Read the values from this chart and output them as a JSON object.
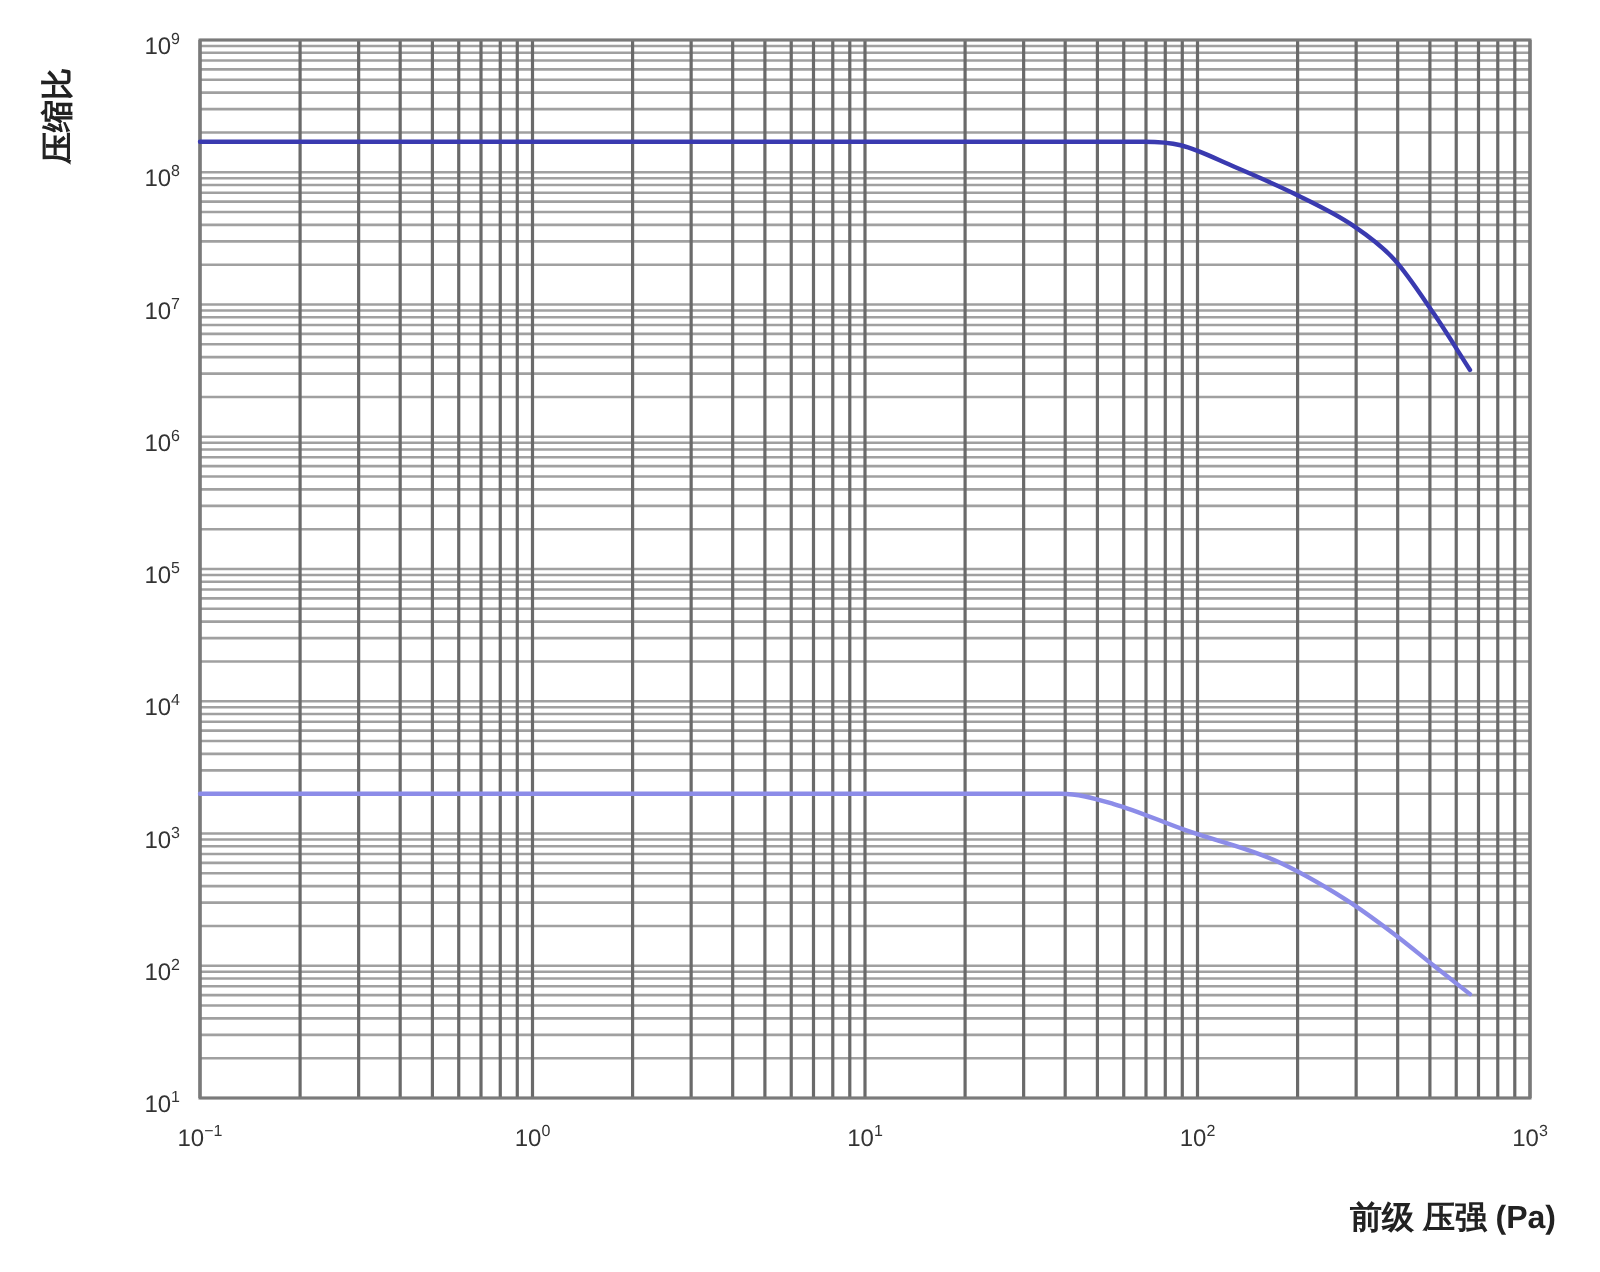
{
  "chart_data": {
    "type": "line",
    "xlabel": "前级 压强 (Pa)",
    "ylabel": "压缩比",
    "log": "xy",
    "grid": true,
    "xlim": [
      0.1,
      1000
    ],
    "ylim": [
      10,
      1000000000
    ],
    "xticks": [
      {
        "value": 0.1,
        "label": "10$^{−1}$"
      },
      {
        "value": 1,
        "label": "10$^{0}$"
      },
      {
        "value": 10,
        "label": "10$^{1}$"
      },
      {
        "value": 100,
        "label": "10$^{2}$"
      },
      {
        "value": 1000,
        "label": "10$^{3}$"
      }
    ],
    "yticks": [
      {
        "value": 10,
        "label": "10$^{1}$"
      },
      {
        "value": 100,
        "label": "10$^{2}$"
      },
      {
        "value": 1000,
        "label": "10$^{3}$"
      },
      {
        "value": 10000,
        "label": "10$^{4}$"
      },
      {
        "value": 100000,
        "label": "10$^{5}$"
      },
      {
        "value": 1000000,
        "label": "10$^{6}$"
      },
      {
        "value": 10000000,
        "label": "10$^{7}$"
      },
      {
        "value": 100000000,
        "label": "10$^{8}$"
      },
      {
        "value": 1000000000,
        "label": "10$^{9}$"
      }
    ],
    "series": [
      {
        "color": "#3a3ab0",
        "x": [
          0.1,
          69,
          89,
          129,
          195,
          296,
          390,
          514,
          660
        ],
        "values": [
          170000000,
          170000000,
          160000000,
          110000000,
          69000000,
          39000000,
          22000000,
          8500000,
          3200000
        ]
      },
      {
        "color": "#8c8ce8",
        "x": [
          0.1,
          39,
          56,
          92,
          170,
          280,
          390,
          514,
          660
        ],
        "values": [
          2000,
          2000,
          1670,
          1060,
          630,
          315,
          174,
          100,
          61
        ]
      }
    ]
  }
}
